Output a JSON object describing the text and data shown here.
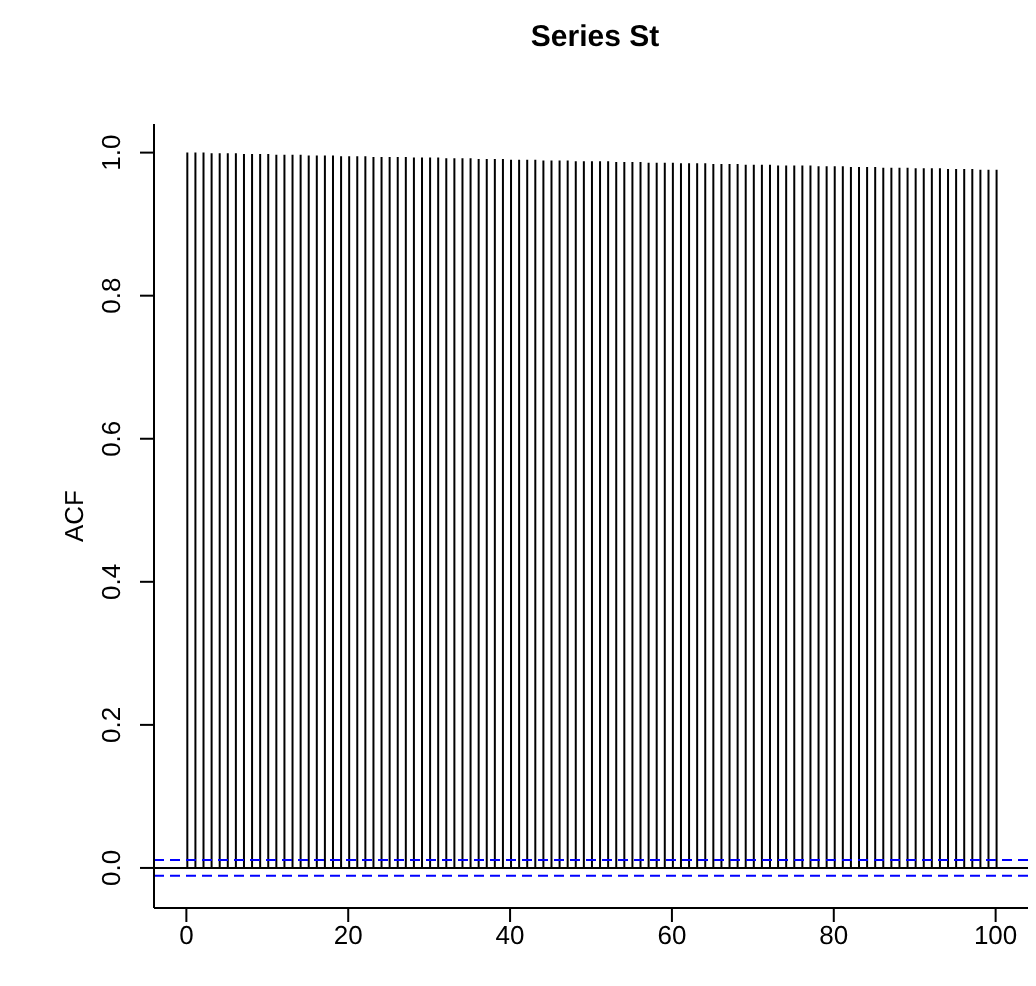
{
  "chart_data": {
    "type": "bar",
    "title": "Series  St",
    "ylabel": "ACF",
    "x": [
      0,
      1,
      2,
      3,
      4,
      5,
      6,
      7,
      8,
      9,
      10,
      11,
      12,
      13,
      14,
      15,
      16,
      17,
      18,
      19,
      20,
      21,
      22,
      23,
      24,
      25,
      26,
      27,
      28,
      29,
      30,
      31,
      32,
      33,
      34,
      35,
      36,
      37,
      38,
      39,
      40,
      41,
      42,
      43,
      44,
      45,
      46,
      47,
      48,
      49,
      50,
      51,
      52,
      53,
      54,
      55,
      56,
      57,
      58,
      59,
      60,
      61,
      62,
      63,
      64,
      65,
      66,
      67,
      68,
      69,
      70,
      71,
      72,
      73,
      74,
      75,
      76,
      77,
      78,
      79,
      80,
      81,
      82,
      83,
      84,
      85,
      86,
      87,
      88,
      89,
      90,
      91,
      92,
      93,
      94,
      95,
      96,
      97,
      98,
      99,
      100
    ],
    "values": [
      1.0,
      1.0,
      1.0,
      0.999,
      0.999,
      0.999,
      0.999,
      0.998,
      0.998,
      0.998,
      0.998,
      0.997,
      0.997,
      0.997,
      0.997,
      0.996,
      0.996,
      0.996,
      0.996,
      0.995,
      0.995,
      0.995,
      0.995,
      0.994,
      0.994,
      0.994,
      0.994,
      0.994,
      0.993,
      0.993,
      0.993,
      0.993,
      0.992,
      0.992,
      0.992,
      0.992,
      0.991,
      0.991,
      0.991,
      0.991,
      0.99,
      0.99,
      0.99,
      0.99,
      0.989,
      0.989,
      0.989,
      0.989,
      0.988,
      0.988,
      0.988,
      0.988,
      0.988,
      0.987,
      0.987,
      0.987,
      0.987,
      0.986,
      0.986,
      0.986,
      0.986,
      0.985,
      0.985,
      0.985,
      0.985,
      0.984,
      0.984,
      0.984,
      0.984,
      0.983,
      0.983,
      0.983,
      0.983,
      0.982,
      0.982,
      0.982,
      0.982,
      0.982,
      0.981,
      0.981,
      0.981,
      0.981,
      0.98,
      0.98,
      0.98,
      0.98,
      0.979,
      0.979,
      0.979,
      0.979,
      0.978,
      0.978,
      0.978,
      0.978,
      0.977,
      0.977,
      0.977,
      0.977,
      0.976,
      0.976,
      0.976
    ],
    "color": "#000000",
    "xlim": [
      -4,
      104
    ],
    "xticks": [
      0,
      20,
      40,
      60,
      80,
      100
    ],
    "ylim": [
      -0.056,
      1.04
    ],
    "yticks": [
      {
        "value": 0,
        "label": "0.0"
      },
      {
        "value": 0.2,
        "label": "0.2"
      },
      {
        "value": 0.4,
        "label": "0.4"
      },
      {
        "value": 0.6,
        "label": "0.6"
      },
      {
        "value": 0.8,
        "label": "0.8"
      },
      {
        "value": 1,
        "label": "1.0"
      }
    ],
    "ref_lines": [
      {
        "axis": "y",
        "value": 0,
        "color": "#000000",
        "line_style": "solid"
      },
      {
        "axis": "y",
        "value": 0.011,
        "color": "#0000ff",
        "line_style": "dashed"
      },
      {
        "axis": "y",
        "value": -0.011,
        "color": "#0000ff",
        "line_style": "dashed"
      }
    ]
  }
}
